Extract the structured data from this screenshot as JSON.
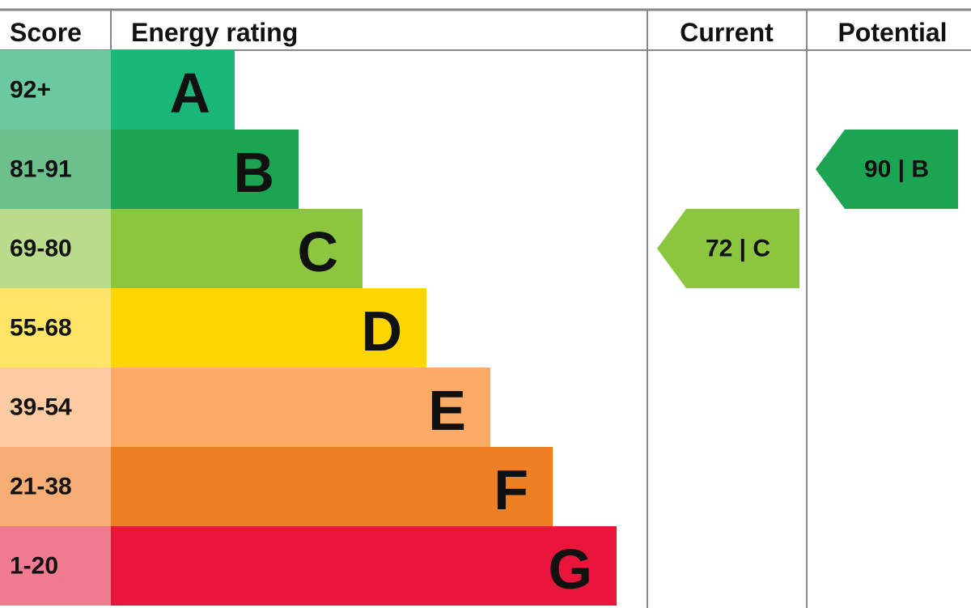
{
  "header": {
    "score": "Score",
    "rating": "Energy rating",
    "current": "Current",
    "potential": "Potential"
  },
  "rows": [
    {
      "score": "92+",
      "rating": "A",
      "color": "#19b77a",
      "light": "#6ccaa3"
    },
    {
      "score": "81-91",
      "rating": "B",
      "color": "#1ba552",
      "light": "#6cc08b"
    },
    {
      "score": "69-80",
      "rating": "C",
      "color": "#8cc63f",
      "light": "#b8dc8a"
    },
    {
      "score": "55-68",
      "rating": "D",
      "color": "#ffd500",
      "light": "#ffe466"
    },
    {
      "score": "39-54",
      "rating": "E",
      "color": "#fcaa65",
      "light": "#fdcba1"
    },
    {
      "score": "21-38",
      "rating": "F",
      "color": "#ee8023",
      "light": "#f4ae74"
    },
    {
      "score": "1-20",
      "rating": "G",
      "color": "#e9153b",
      "light": "#f07a8f"
    }
  ],
  "current": {
    "value": 72,
    "rating": "C",
    "label": "72 | C"
  },
  "potential": {
    "value": 90,
    "rating": "B",
    "label": "90 | B"
  }
}
